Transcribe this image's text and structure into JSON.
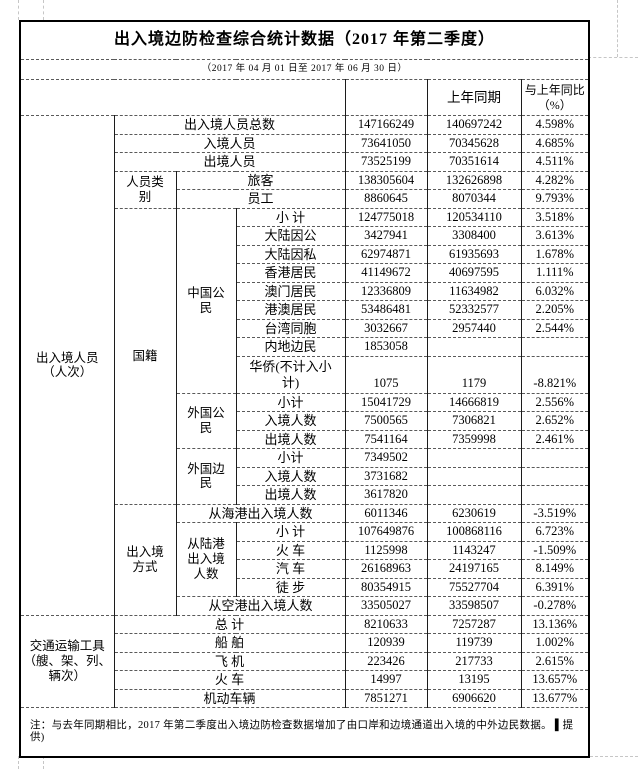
{
  "document": {
    "title": "出入境边防检查综合统计数据（2017 年第二季度）",
    "subtitle": "（2017 年 04 月 01 日至 2017 年 06 月 30 日）",
    "note": "注：与去年同期相比，2017 年第二季度出入境边防检查数据增加了由口岸和边境通道出入境的中外边民数据。 ▌提供)"
  },
  "table": {
    "header": {
      "group_label": "",
      "current_label": "",
      "prior_label": "上年同期",
      "yoy_label": "与上年同比\n（%）"
    },
    "rows": [
      {
        "cells": [
          {
            "t": "出入境人员\n（人次）",
            "rs": 26,
            "cat": true
          },
          {
            "t": "出入境人员总数",
            "cs": 3
          },
          {
            "t": "147166249"
          },
          {
            "t": "140697242"
          },
          {
            "t": "4.598%"
          }
        ]
      },
      {
        "cells": [
          {
            "t": "入境人员",
            "cs": 3
          },
          {
            "t": "73641050"
          },
          {
            "t": "70345628"
          },
          {
            "t": "4.685%"
          }
        ]
      },
      {
        "cells": [
          {
            "t": "出境人员",
            "cs": 3
          },
          {
            "t": "73525199"
          },
          {
            "t": "70351614"
          },
          {
            "t": "4.511%"
          }
        ]
      },
      {
        "cells": [
          {
            "t": "人员类\n别",
            "rs": 2,
            "cat": true
          },
          {
            "t": "旅客",
            "cs": 2
          },
          {
            "t": "138305604"
          },
          {
            "t": "132626898"
          },
          {
            "t": "4.282%"
          }
        ]
      },
      {
        "cells": [
          {
            "t": "员工",
            "cs": 2
          },
          {
            "t": "8860645"
          },
          {
            "t": "8070344"
          },
          {
            "t": "9.793%"
          }
        ]
      },
      {
        "cells": [
          {
            "t": "国籍",
            "rs": 15,
            "cat": true
          },
          {
            "t": "中国公\n民",
            "rs": 9,
            "cat": true
          },
          {
            "t": "小 计"
          },
          {
            "t": "124775018"
          },
          {
            "t": "120534110"
          },
          {
            "t": "3.518%"
          }
        ]
      },
      {
        "cells": [
          {
            "t": "大陆因公"
          },
          {
            "t": "3427941"
          },
          {
            "t": "3308400"
          },
          {
            "t": "3.613%"
          }
        ]
      },
      {
        "cells": [
          {
            "t": "大陆因私"
          },
          {
            "t": "62974871"
          },
          {
            "t": "61935693"
          },
          {
            "t": "1.678%"
          }
        ]
      },
      {
        "cells": [
          {
            "t": "香港居民"
          },
          {
            "t": "41149672"
          },
          {
            "t": "40697595"
          },
          {
            "t": "1.111%"
          }
        ]
      },
      {
        "cells": [
          {
            "t": "澳门居民"
          },
          {
            "t": "12336809"
          },
          {
            "t": "11634982"
          },
          {
            "t": "6.032%"
          }
        ]
      },
      {
        "cells": [
          {
            "t": "港澳居民"
          },
          {
            "t": "53486481"
          },
          {
            "t": "52332577"
          },
          {
            "t": "2.205%"
          }
        ]
      },
      {
        "cells": [
          {
            "t": "台湾同胞"
          },
          {
            "t": "3032667"
          },
          {
            "t": "2957440"
          },
          {
            "t": "2.544%"
          }
        ]
      },
      {
        "cells": [
          {
            "t": "内地边民"
          },
          {
            "t": "1853058"
          },
          {
            "t": ""
          },
          {
            "t": ""
          }
        ]
      },
      {
        "tall": true,
        "cells": [
          {
            "t": "华侨(不计入小\n计)"
          },
          {
            "t": "1075"
          },
          {
            "t": "1179"
          },
          {
            "t": "-8.821%"
          }
        ]
      },
      {
        "cells": [
          {
            "t": "外国公\n民",
            "rs": 3,
            "cat": true
          },
          {
            "t": "小计"
          },
          {
            "t": "15041729"
          },
          {
            "t": "14666819"
          },
          {
            "t": "2.556%"
          }
        ]
      },
      {
        "cells": [
          {
            "t": "入境人数"
          },
          {
            "t": "7500565"
          },
          {
            "t": "7306821"
          },
          {
            "t": "2.652%"
          }
        ]
      },
      {
        "cells": [
          {
            "t": "出境人数"
          },
          {
            "t": "7541164"
          },
          {
            "t": "7359998"
          },
          {
            "t": "2.461%"
          }
        ]
      },
      {
        "cells": [
          {
            "t": "外国边\n民",
            "rs": 3,
            "cat": true
          },
          {
            "t": "小计"
          },
          {
            "t": "7349502"
          },
          {
            "t": ""
          },
          {
            "t": ""
          }
        ]
      },
      {
        "cells": [
          {
            "t": "入境人数"
          },
          {
            "t": "3731682"
          },
          {
            "t": ""
          },
          {
            "t": ""
          }
        ]
      },
      {
        "cells": [
          {
            "t": "出境人数"
          },
          {
            "t": "3617820"
          },
          {
            "t": ""
          },
          {
            "t": ""
          }
        ]
      },
      {
        "cells": [
          {
            "t": "出入境\n方式",
            "rs": 6,
            "cat": true
          },
          {
            "t": "从海港出入境人数",
            "cs": 2
          },
          {
            "t": "6011346"
          },
          {
            "t": "6230619"
          },
          {
            "t": "-3.519%"
          }
        ]
      },
      {
        "cells": [
          {
            "t": "从陆港\n出入境\n人数",
            "rs": 4,
            "cat": true
          },
          {
            "t": "小 计"
          },
          {
            "t": "107649876"
          },
          {
            "t": "100868116"
          },
          {
            "t": "6.723%"
          }
        ]
      },
      {
        "cells": [
          {
            "t": "火 车"
          },
          {
            "t": "1125998"
          },
          {
            "t": "1143247"
          },
          {
            "t": "-1.509%"
          }
        ]
      },
      {
        "cells": [
          {
            "t": "汽 车"
          },
          {
            "t": "26168963"
          },
          {
            "t": "24197165"
          },
          {
            "t": "8.149%"
          }
        ]
      },
      {
        "cells": [
          {
            "t": "徒 步"
          },
          {
            "t": "80354915"
          },
          {
            "t": "75527704"
          },
          {
            "t": "6.391%"
          }
        ]
      },
      {
        "cells": [
          {
            "t": "从空港出入境人数",
            "cs": 2
          },
          {
            "t": "33505027"
          },
          {
            "t": "33598507"
          },
          {
            "t": "-0.278%"
          }
        ]
      },
      {
        "cells": [
          {
            "t": "交通运输工具\n（艘、架、列、\n辆次）",
            "rs": 5,
            "cat": true
          },
          {
            "t": "总 计",
            "cs": 3
          },
          {
            "t": "8210633"
          },
          {
            "t": "7257287"
          },
          {
            "t": "13.136%"
          }
        ]
      },
      {
        "cells": [
          {
            "t": "船 舶",
            "cs": 3
          },
          {
            "t": "120939"
          },
          {
            "t": "119739"
          },
          {
            "t": "1.002%"
          }
        ]
      },
      {
        "cells": [
          {
            "t": "飞 机",
            "cs": 3
          },
          {
            "t": "223426"
          },
          {
            "t": "217733"
          },
          {
            "t": "2.615%"
          }
        ]
      },
      {
        "cells": [
          {
            "t": "火 车",
            "cs": 3
          },
          {
            "t": "14997"
          },
          {
            "t": "13195"
          },
          {
            "t": "13.657%"
          }
        ]
      },
      {
        "cells": [
          {
            "t": "机动车辆",
            "cs": 3
          },
          {
            "t": "7851271"
          },
          {
            "t": "6906620"
          },
          {
            "t": "13.677%"
          }
        ]
      }
    ]
  }
}
